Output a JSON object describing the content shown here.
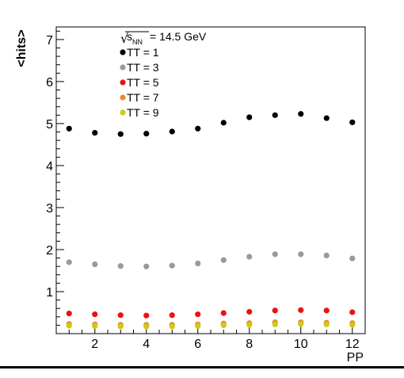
{
  "chart_data": {
    "type": "scatter",
    "title": "",
    "xlabel": "PP",
    "ylabel": "<hits>",
    "xlim": [
      0.5,
      12.5
    ],
    "ylim": [
      0,
      7.3
    ],
    "x_ticks": [
      2,
      4,
      6,
      8,
      10,
      12
    ],
    "y_ticks": [
      1,
      2,
      3,
      4,
      5,
      6,
      7
    ],
    "grid": false,
    "legend_position": "top-left",
    "legend_header": {
      "sqrt_symbol": "√",
      "s": "s",
      "subscript": "NN",
      "energy": "= 14.5 GeV"
    },
    "x": [
      1,
      2,
      3,
      4,
      5,
      6,
      7,
      8,
      9,
      10,
      11,
      12
    ],
    "series": [
      {
        "name": "TT = 1",
        "color": "#000000",
        "values": [
          4.88,
          4.78,
          4.75,
          4.76,
          4.81,
          4.88,
          5.02,
          5.15,
          5.2,
          5.23,
          5.13,
          5.03
        ]
      },
      {
        "name": "TT = 3",
        "color": "#999999",
        "values": [
          1.7,
          1.65,
          1.61,
          1.6,
          1.62,
          1.67,
          1.75,
          1.83,
          1.89,
          1.89,
          1.86,
          1.79
        ]
      },
      {
        "name": "TT = 5",
        "color": "#ee1111",
        "values": [
          0.48,
          0.46,
          0.44,
          0.43,
          0.44,
          0.46,
          0.49,
          0.52,
          0.55,
          0.56,
          0.55,
          0.51
        ]
      },
      {
        "name": "TT = 7",
        "color": "#ee8833",
        "values": [
          0.23,
          0.22,
          0.21,
          0.21,
          0.21,
          0.22,
          0.24,
          0.25,
          0.27,
          0.27,
          0.26,
          0.25
        ]
      },
      {
        "name": "TT = 9",
        "color": "#cccc11",
        "values": [
          0.19,
          0.18,
          0.17,
          0.17,
          0.17,
          0.18,
          0.2,
          0.21,
          0.22,
          0.23,
          0.22,
          0.21
        ]
      }
    ]
  }
}
